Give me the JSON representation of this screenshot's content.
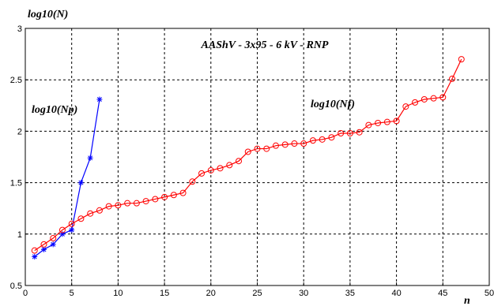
{
  "chart_data": {
    "type": "line",
    "title": "AAShV - 3x95 - 6 kV - RNP",
    "xlabel": "n",
    "ylabel": "log10(N)",
    "xlim": [
      0,
      50
    ],
    "ylim": [
      0.5,
      3
    ],
    "xticks": [
      "0",
      "5",
      "10",
      "15",
      "20",
      "25",
      "30",
      "35",
      "40",
      "45",
      "50"
    ],
    "yticks": [
      "0.5",
      "1",
      "1.5",
      "2",
      "2.5",
      "3"
    ],
    "grid": true,
    "series": [
      {
        "name": "log10(Np)",
        "color": "#0000ff",
        "marker": "asterisk",
        "x": [
          1,
          2,
          3,
          4,
          5,
          6,
          7,
          8
        ],
        "y": [
          0.78,
          0.85,
          0.9,
          1.0,
          1.04,
          1.5,
          1.74,
          2.31
        ]
      },
      {
        "name": "log10(Nf)",
        "color": "#ff0000",
        "marker": "circle",
        "x": [
          1,
          2,
          3,
          4,
          5,
          6,
          7,
          8,
          9,
          10,
          11,
          12,
          13,
          14,
          15,
          16,
          17,
          18,
          19,
          20,
          21,
          22,
          23,
          24,
          25,
          26,
          27,
          28,
          29,
          30,
          31,
          32,
          33,
          34,
          35,
          36,
          37,
          38,
          39,
          40,
          41,
          42,
          43,
          44,
          45,
          46,
          47
        ],
        "y": [
          0.84,
          0.9,
          0.96,
          1.04,
          1.1,
          1.15,
          1.2,
          1.23,
          1.27,
          1.28,
          1.3,
          1.3,
          1.32,
          1.34,
          1.36,
          1.38,
          1.4,
          1.51,
          1.59,
          1.62,
          1.64,
          1.67,
          1.71,
          1.8,
          1.83,
          1.83,
          1.86,
          1.87,
          1.88,
          1.88,
          1.91,
          1.92,
          1.94,
          1.98,
          1.98,
          1.99,
          2.06,
          2.08,
          2.09,
          2.1,
          2.24,
          2.28,
          2.31,
          2.32,
          2.33,
          2.51,
          2.7
        ]
      }
    ]
  }
}
